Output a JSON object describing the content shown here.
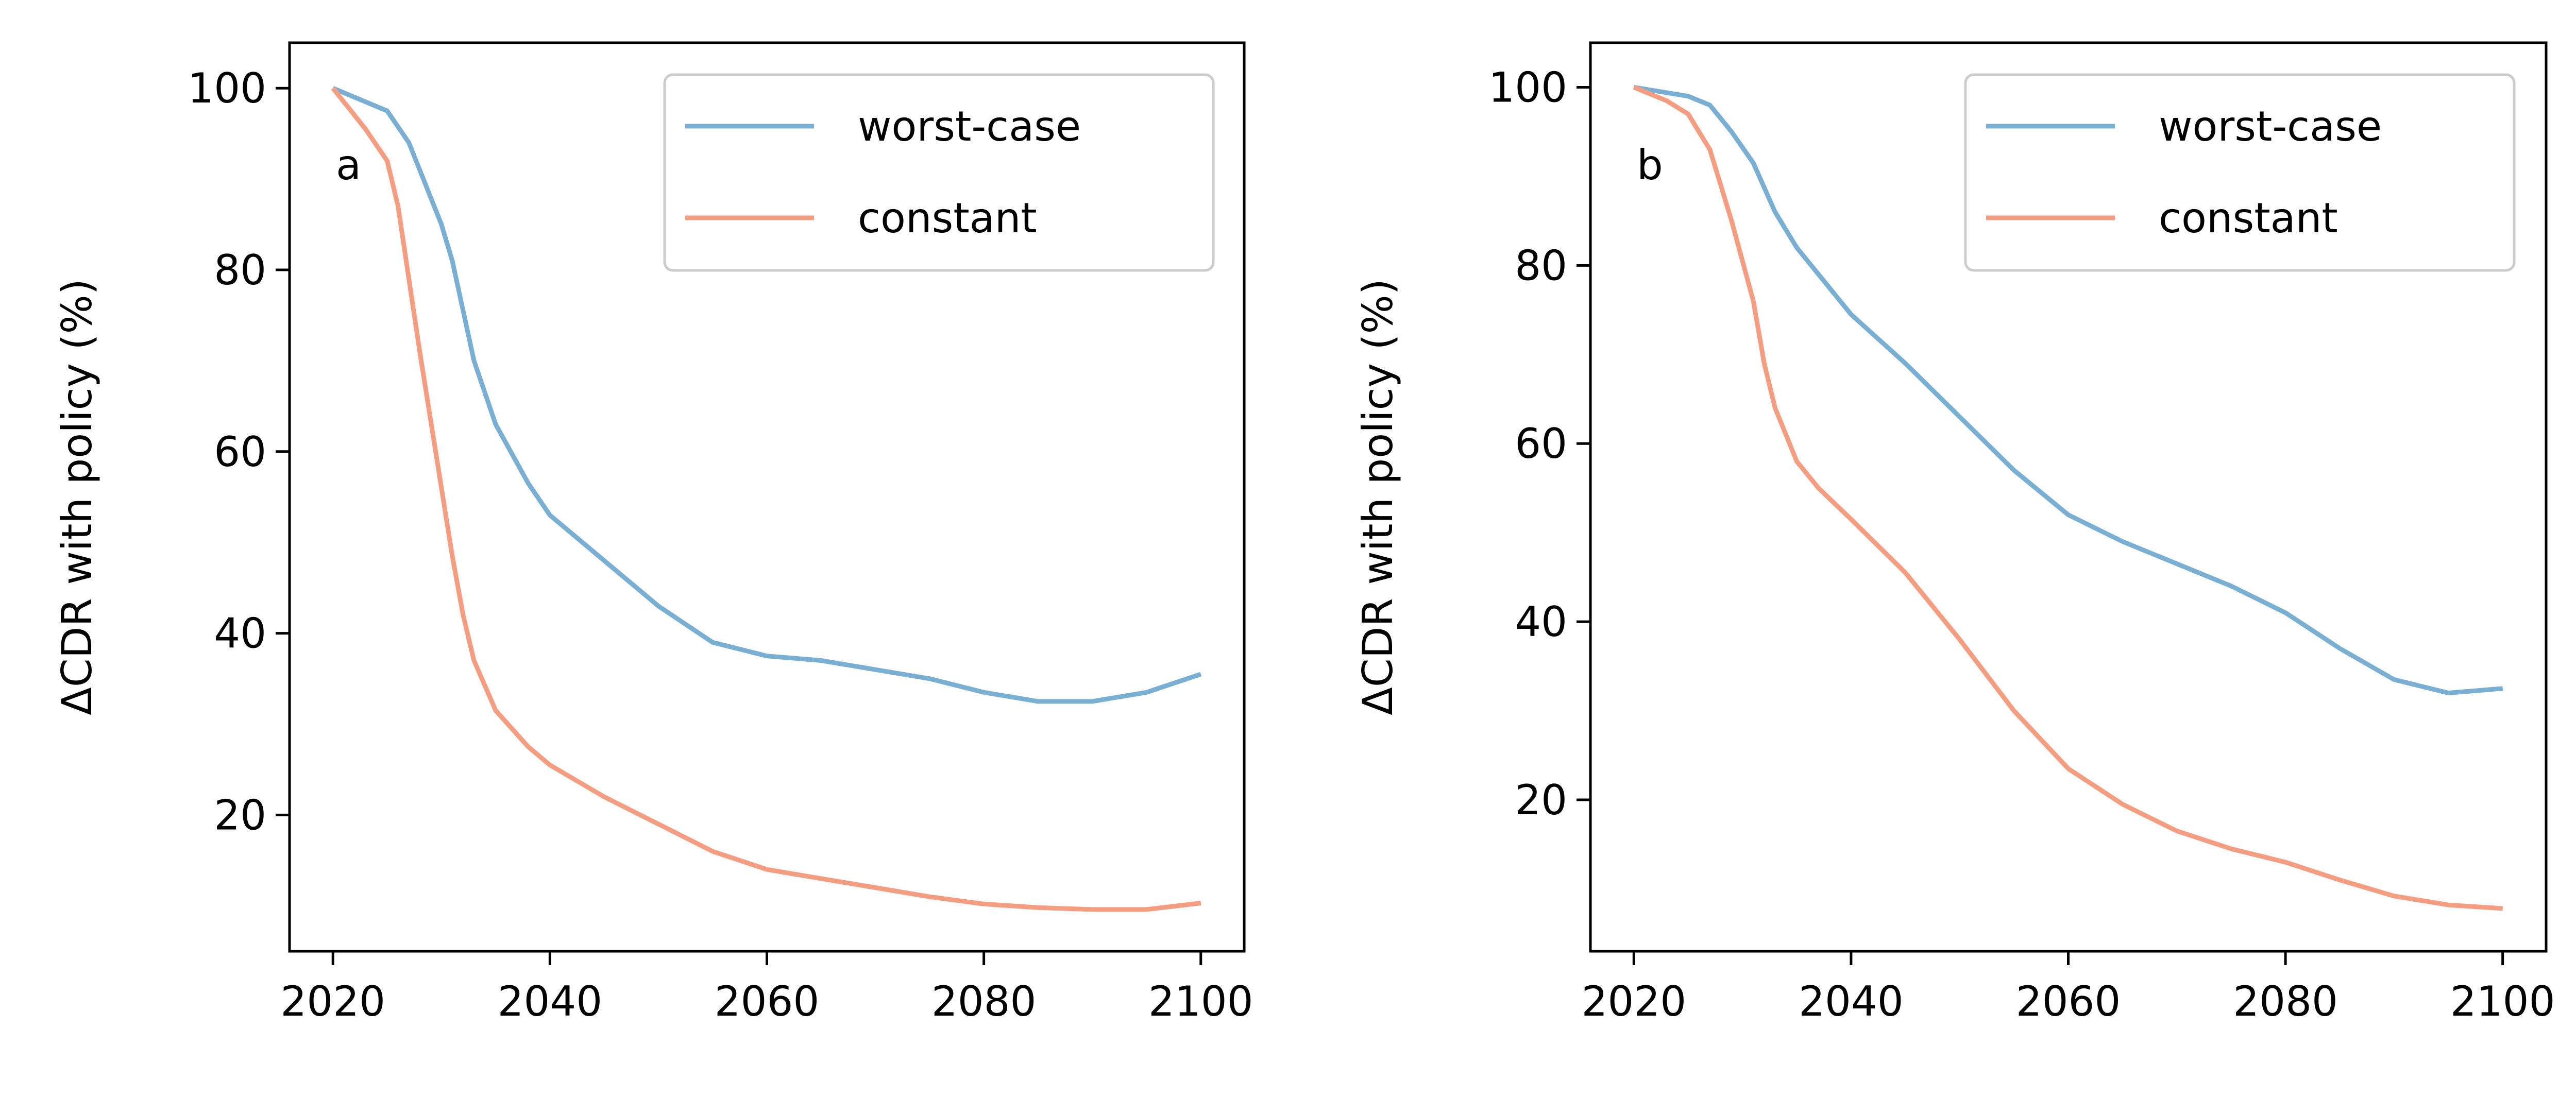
{
  "chart_data": [
    {
      "type": "line",
      "panel_label": "a",
      "ylabel": "ΔCDR with policy (%)",
      "xlabel": "",
      "xlim": [
        2016,
        2104
      ],
      "ylim": [
        5,
        105
      ],
      "x_ticks": [
        2020,
        2040,
        2060,
        2080,
        2100
      ],
      "y_ticks": [
        20,
        40,
        60,
        80,
        100
      ],
      "legend_position": "upper right",
      "series": [
        {
          "name": "worst-case",
          "color": "#7aafd4",
          "x": [
            2020,
            2025,
            2027,
            2030,
            2031,
            2033,
            2035,
            2038,
            2040,
            2045,
            2050,
            2055,
            2060,
            2065,
            2070,
            2075,
            2080,
            2085,
            2090,
            2095,
            2100
          ],
          "y": [
            100,
            97.5,
            94,
            85,
            81,
            70,
            63,
            56.5,
            53,
            48,
            43,
            39,
            37.5,
            37,
            36,
            35,
            33.5,
            32.5,
            32.5,
            33.5,
            35.5
          ]
        },
        {
          "name": "constant",
          "color": "#f59d80",
          "x": [
            2020,
            2023,
            2025,
            2026,
            2028,
            2030,
            2031,
            2032,
            2033,
            2035,
            2038,
            2040,
            2045,
            2050,
            2055,
            2060,
            2065,
            2070,
            2075,
            2080,
            2085,
            2090,
            2095,
            2100
          ],
          "y": [
            100,
            95.5,
            92,
            87,
            71,
            56,
            48.5,
            42,
            37,
            31.5,
            27.5,
            25.5,
            22,
            19,
            16,
            14,
            13,
            12,
            11,
            10.2,
            9.8,
            9.6,
            9.6,
            10.3
          ]
        }
      ]
    },
    {
      "type": "line",
      "panel_label": "b",
      "ylabel": "ΔCDR with policy (%)",
      "xlabel": "",
      "xlim": [
        2016,
        2104
      ],
      "ylim": [
        3,
        105
      ],
      "x_ticks": [
        2020,
        2040,
        2060,
        2080,
        2100
      ],
      "y_ticks": [
        20,
        40,
        60,
        80,
        100
      ],
      "legend_position": "upper right",
      "series": [
        {
          "name": "worst-case",
          "color": "#7aafd4",
          "x": [
            2020,
            2025,
            2027,
            2029,
            2031,
            2033,
            2035,
            2038,
            2040,
            2045,
            2050,
            2055,
            2060,
            2065,
            2070,
            2075,
            2080,
            2085,
            2090,
            2095,
            2100
          ],
          "y": [
            100,
            99,
            98,
            95,
            91.5,
            86,
            82,
            77.5,
            74.5,
            69,
            63,
            57,
            52,
            49,
            46.5,
            44,
            41,
            37,
            33.5,
            32,
            32.5
          ]
        },
        {
          "name": "constant",
          "color": "#f59d80",
          "x": [
            2020,
            2023,
            2025,
            2027,
            2029,
            2031,
            2032,
            2033,
            2035,
            2037,
            2040,
            2045,
            2050,
            2055,
            2060,
            2065,
            2070,
            2075,
            2080,
            2085,
            2090,
            2095,
            2100
          ],
          "y": [
            100,
            98.5,
            97,
            93,
            85,
            76,
            69,
            64,
            58,
            55,
            51.5,
            45.5,
            38,
            30,
            23.5,
            19.5,
            16.5,
            14.5,
            13,
            11,
            9.2,
            8.2,
            7.8
          ]
        }
      ]
    }
  ]
}
